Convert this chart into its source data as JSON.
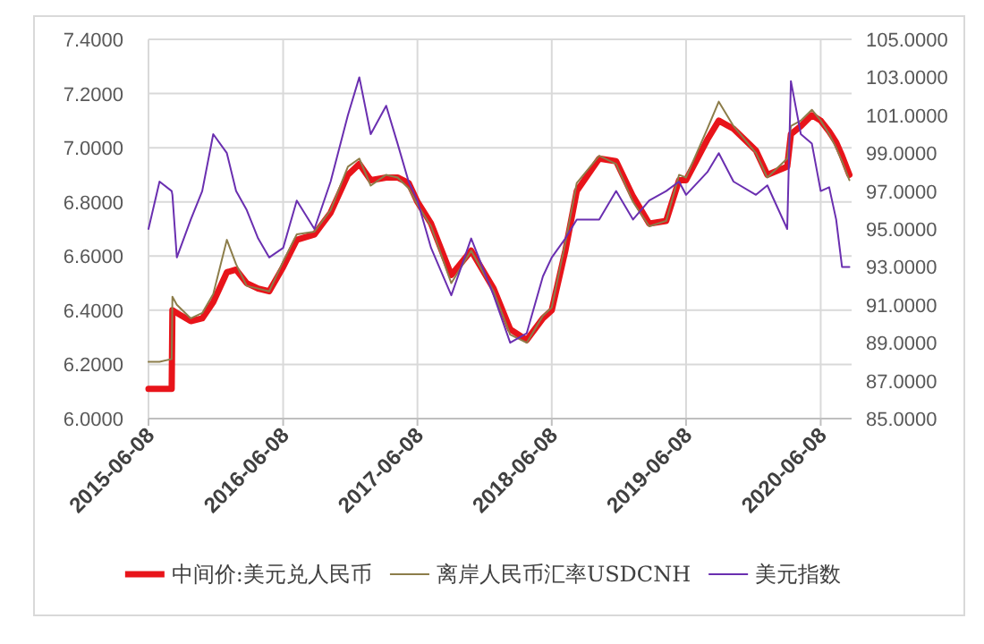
{
  "chart_data": {
    "type": "line",
    "x": [
      "2015-06-08",
      "2015-07-08",
      "2015-08-10",
      "2015-08-12",
      "2015-08-24",
      "2015-10-01",
      "2015-11-01",
      "2015-12-01",
      "2016-01-07",
      "2016-02-01",
      "2016-03-01",
      "2016-04-01",
      "2016-05-01",
      "2016-06-08",
      "2016-07-15",
      "2016-09-01",
      "2016-10-15",
      "2016-12-01",
      "2017-01-01",
      "2017-02-01",
      "2017-03-15",
      "2017-04-15",
      "2017-05-15",
      "2017-06-08",
      "2017-07-15",
      "2017-09-08",
      "2017-11-01",
      "2018-01-01",
      "2018-02-15",
      "2018-04-01",
      "2018-05-15",
      "2018-06-08",
      "2018-07-15",
      "2018-08-15",
      "2018-10-15",
      "2018-11-30",
      "2019-01-15",
      "2019-02-28",
      "2019-04-15",
      "2019-05-20",
      "2019-06-08",
      "2019-08-05",
      "2019-09-05",
      "2019-10-15",
      "2019-12-15",
      "2020-01-15",
      "2020-03-09",
      "2020-03-19",
      "2020-04-15",
      "2020-05-15",
      "2020-06-08",
      "2020-07-01",
      "2020-07-20",
      "2020-08-05",
      "2020-08-25"
    ],
    "series": [
      {
        "name": "中间价:美元兑人民币",
        "color": "#e8141a",
        "values": [
          6.11,
          6.11,
          6.11,
          6.4,
          6.39,
          6.36,
          6.37,
          6.43,
          6.54,
          6.55,
          6.5,
          6.48,
          6.47,
          6.56,
          6.66,
          6.68,
          6.76,
          6.9,
          6.94,
          6.88,
          6.89,
          6.89,
          6.87,
          6.8,
          6.72,
          6.53,
          6.62,
          6.48,
          6.33,
          6.29,
          6.37,
          6.4,
          6.62,
          6.84,
          6.96,
          6.95,
          6.82,
          6.72,
          6.73,
          6.88,
          6.88,
          7.03,
          7.1,
          7.07,
          6.99,
          6.9,
          6.93,
          7.05,
          7.08,
          7.12,
          7.1,
          7.06,
          7.02,
          6.97,
          6.9
        ]
      },
      {
        "name": "离岸人民币汇率USDCNH",
        "color": "#8c7d4a",
        "values": [
          6.21,
          6.21,
          6.22,
          6.45,
          6.42,
          6.37,
          6.39,
          6.46,
          6.66,
          6.57,
          6.49,
          6.48,
          6.47,
          6.58,
          6.68,
          6.69,
          6.77,
          6.93,
          6.96,
          6.86,
          6.9,
          6.89,
          6.85,
          6.79,
          6.71,
          6.5,
          6.62,
          6.47,
          6.31,
          6.28,
          6.38,
          6.41,
          6.65,
          6.87,
          6.97,
          6.94,
          6.8,
          6.71,
          6.73,
          6.9,
          6.89,
          7.07,
          7.17,
          7.08,
          6.98,
          6.89,
          6.96,
          7.08,
          7.1,
          7.14,
          7.1,
          7.05,
          7.0,
          6.95,
          6.88
        ]
      },
      {
        "name": "美元指数",
        "color": "#6a2fb0",
        "axis": "y2",
        "values": [
          95.0,
          97.5,
          97.0,
          96.8,
          93.5,
          95.5,
          97.0,
          100.0,
          99.0,
          97.0,
          96.0,
          94.5,
          93.5,
          94.0,
          96.5,
          95.0,
          97.5,
          101.0,
          103.0,
          100.0,
          101.5,
          99.5,
          97.5,
          96.5,
          94.0,
          91.5,
          94.5,
          91.5,
          89.0,
          89.5,
          92.5,
          93.5,
          94.5,
          95.5,
          95.5,
          97.0,
          95.5,
          96.5,
          97.0,
          97.5,
          96.8,
          98.0,
          99.0,
          97.5,
          96.8,
          97.3,
          95.0,
          102.8,
          100.0,
          99.5,
          97.0,
          97.2,
          95.5,
          93.0,
          93.0
        ]
      }
    ],
    "xlim": [
      "2015-06-08",
      "2020-08-31"
    ],
    "xticks": [
      "2015-06-08",
      "2016-06-08",
      "2017-06-08",
      "2018-06-08",
      "2019-06-08",
      "2020-06-08"
    ],
    "ylim": [
      6,
      7.4
    ],
    "yticks": [
      {
        "value": 6,
        "label": "6.0000"
      },
      {
        "value": 6.2,
        "label": "6.2000"
      },
      {
        "value": 6.4,
        "label": "6.4000"
      },
      {
        "value": 6.6,
        "label": "6.6000"
      },
      {
        "value": 6.8,
        "label": "6.8000"
      },
      {
        "value": 7,
        "label": "7.0000"
      },
      {
        "value": 7.2,
        "label": "7.2000"
      },
      {
        "value": 7.4,
        "label": "7.4000"
      }
    ],
    "y2lim": [
      85,
      105
    ],
    "y2ticks": [
      {
        "value": 85,
        "label": "85.0000"
      },
      {
        "value": 87,
        "label": "87.0000"
      },
      {
        "value": 89,
        "label": "89.0000"
      },
      {
        "value": 91,
        "label": "91.0000"
      },
      {
        "value": 93,
        "label": "93.0000"
      },
      {
        "value": 95,
        "label": "95.0000"
      },
      {
        "value": 97,
        "label": "97.0000"
      },
      {
        "value": 99,
        "label": "99.0000"
      },
      {
        "value": 101,
        "label": "101.0000"
      },
      {
        "value": 103,
        "label": "103.0000"
      },
      {
        "value": 105,
        "label": "105.0000"
      }
    ],
    "grid": true,
    "legend": "bottom"
  }
}
